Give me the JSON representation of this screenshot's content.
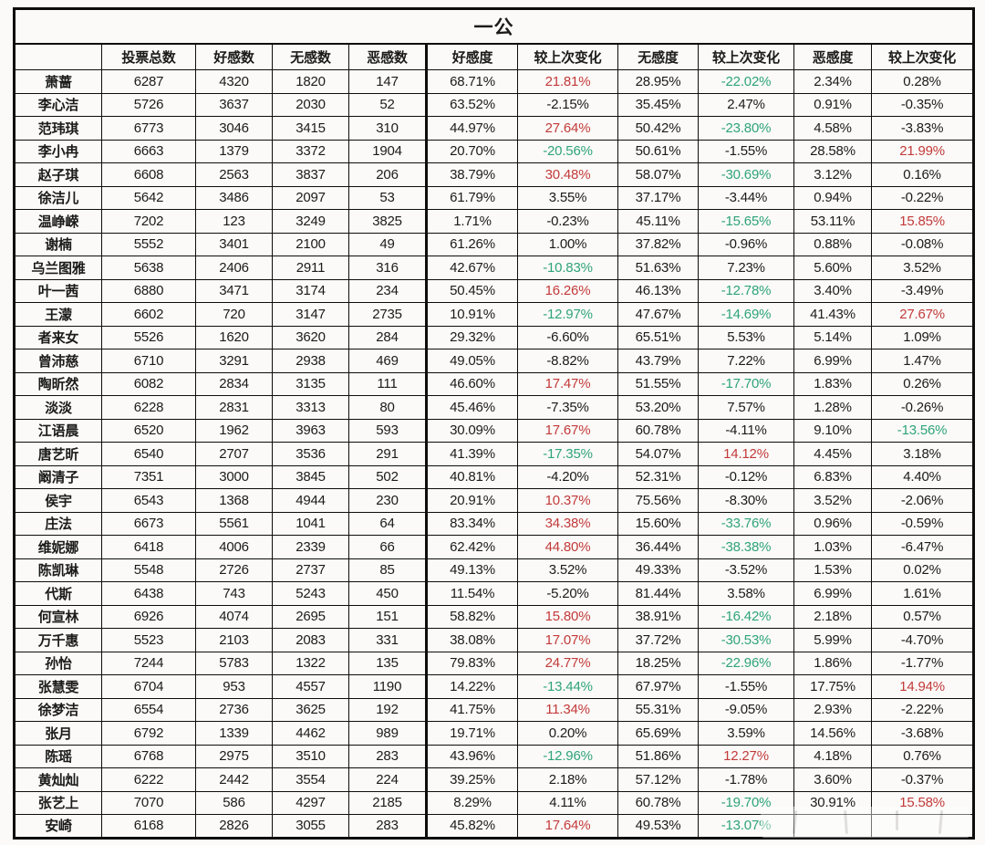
{
  "title": "一公",
  "columns": [
    "",
    "投票总数",
    "好感数",
    "无感数",
    "恶感数",
    "好感度",
    "较上次变化",
    "无感度",
    "较上次变化",
    "恶感度",
    "较上次变化"
  ],
  "colors": {
    "increase_red": "#c23a3a",
    "decrease_green": "#2fa37d",
    "text": "#1b1b1b",
    "border": "#0d0d0d",
    "background": "#fbfaf8"
  },
  "legend": {
    "r": "red (increase highlight)",
    "g": "green (decrease highlight)",
    "k": "black (normal)"
  },
  "rows": [
    {
      "name": "萧蔷",
      "values": [
        "6287",
        "4320",
        "1820",
        "147",
        "68.71%",
        "21.81%",
        "28.95%",
        "-22.02%",
        "2.34%",
        "0.28%"
      ],
      "value_colors": [
        "k",
        "k",
        "k",
        "k",
        "k",
        "r",
        "k",
        "g",
        "k",
        "k"
      ]
    },
    {
      "name": "李心洁",
      "values": [
        "5726",
        "3637",
        "2030",
        "52",
        "63.52%",
        "-2.15%",
        "35.45%",
        "2.47%",
        "0.91%",
        "-0.35%"
      ],
      "value_colors": [
        "k",
        "k",
        "k",
        "k",
        "k",
        "k",
        "k",
        "k",
        "k",
        "k"
      ]
    },
    {
      "name": "范玮琪",
      "values": [
        "6773",
        "3046",
        "3415",
        "310",
        "44.97%",
        "27.64%",
        "50.42%",
        "-23.80%",
        "4.58%",
        "-3.83%"
      ],
      "value_colors": [
        "k",
        "k",
        "k",
        "k",
        "k",
        "r",
        "k",
        "g",
        "k",
        "k"
      ]
    },
    {
      "name": "李小冉",
      "values": [
        "6663",
        "1379",
        "3372",
        "1904",
        "20.70%",
        "-20.56%",
        "50.61%",
        "-1.55%",
        "28.58%",
        "21.99%"
      ],
      "value_colors": [
        "k",
        "k",
        "k",
        "k",
        "k",
        "g",
        "k",
        "k",
        "k",
        "r"
      ]
    },
    {
      "name": "赵子琪",
      "values": [
        "6608",
        "2563",
        "3837",
        "206",
        "38.79%",
        "30.48%",
        "58.07%",
        "-30.69%",
        "3.12%",
        "0.16%"
      ],
      "value_colors": [
        "k",
        "k",
        "k",
        "k",
        "k",
        "r",
        "k",
        "g",
        "k",
        "k"
      ]
    },
    {
      "name": "徐洁儿",
      "values": [
        "5642",
        "3486",
        "2097",
        "53",
        "61.79%",
        "3.55%",
        "37.17%",
        "-3.44%",
        "0.94%",
        "-0.22%"
      ],
      "value_colors": [
        "k",
        "k",
        "k",
        "k",
        "k",
        "k",
        "k",
        "k",
        "k",
        "k"
      ]
    },
    {
      "name": "温峥嵘",
      "values": [
        "7202",
        "123",
        "3249",
        "3825",
        "1.71%",
        "-0.23%",
        "45.11%",
        "-15.65%",
        "53.11%",
        "15.85%"
      ],
      "value_colors": [
        "k",
        "k",
        "k",
        "k",
        "k",
        "k",
        "k",
        "g",
        "k",
        "r"
      ]
    },
    {
      "name": "谢楠",
      "values": [
        "5552",
        "3401",
        "2100",
        "49",
        "61.26%",
        "1.00%",
        "37.82%",
        "-0.96%",
        "0.88%",
        "-0.08%"
      ],
      "value_colors": [
        "k",
        "k",
        "k",
        "k",
        "k",
        "k",
        "k",
        "k",
        "k",
        "k"
      ]
    },
    {
      "name": "乌兰图雅",
      "values": [
        "5638",
        "2406",
        "2911",
        "316",
        "42.67%",
        "-10.83%",
        "51.63%",
        "7.23%",
        "5.60%",
        "3.52%"
      ],
      "value_colors": [
        "k",
        "k",
        "k",
        "k",
        "k",
        "g",
        "k",
        "k",
        "k",
        "k"
      ]
    },
    {
      "name": "叶一茜",
      "values": [
        "6880",
        "3471",
        "3174",
        "234",
        "50.45%",
        "16.26%",
        "46.13%",
        "-12.78%",
        "3.40%",
        "-3.49%"
      ],
      "value_colors": [
        "k",
        "k",
        "k",
        "k",
        "k",
        "r",
        "k",
        "g",
        "k",
        "k"
      ]
    },
    {
      "name": "王濛",
      "values": [
        "6602",
        "720",
        "3147",
        "2735",
        "10.91%",
        "-12.97%",
        "47.67%",
        "-14.69%",
        "41.43%",
        "27.67%"
      ],
      "value_colors": [
        "k",
        "k",
        "k",
        "k",
        "k",
        "g",
        "k",
        "g",
        "k",
        "r"
      ]
    },
    {
      "name": "者来女",
      "values": [
        "5526",
        "1620",
        "3620",
        "284",
        "29.32%",
        "-6.60%",
        "65.51%",
        "5.53%",
        "5.14%",
        "1.09%"
      ],
      "value_colors": [
        "k",
        "k",
        "k",
        "k",
        "k",
        "k",
        "k",
        "k",
        "k",
        "k"
      ]
    },
    {
      "name": "曾沛慈",
      "values": [
        "6710",
        "3291",
        "2938",
        "469",
        "49.05%",
        "-8.82%",
        "43.79%",
        "7.22%",
        "6.99%",
        "1.47%"
      ],
      "value_colors": [
        "k",
        "k",
        "k",
        "k",
        "k",
        "k",
        "k",
        "k",
        "k",
        "k"
      ]
    },
    {
      "name": "陶昕然",
      "values": [
        "6082",
        "2834",
        "3135",
        "111",
        "46.60%",
        "17.47%",
        "51.55%",
        "-17.70%",
        "1.83%",
        "0.26%"
      ],
      "value_colors": [
        "k",
        "k",
        "k",
        "k",
        "k",
        "r",
        "k",
        "g",
        "k",
        "k"
      ]
    },
    {
      "name": "淡淡",
      "values": [
        "6228",
        "2831",
        "3313",
        "80",
        "45.46%",
        "-7.35%",
        "53.20%",
        "7.57%",
        "1.28%",
        "-0.26%"
      ],
      "value_colors": [
        "k",
        "k",
        "k",
        "k",
        "k",
        "k",
        "k",
        "k",
        "k",
        "k"
      ]
    },
    {
      "name": "江语晨",
      "values": [
        "6520",
        "1962",
        "3963",
        "593",
        "30.09%",
        "17.67%",
        "60.78%",
        "-4.11%",
        "9.10%",
        "-13.56%"
      ],
      "value_colors": [
        "k",
        "k",
        "k",
        "k",
        "k",
        "r",
        "k",
        "k",
        "k",
        "g"
      ]
    },
    {
      "name": "唐艺昕",
      "values": [
        "6540",
        "2707",
        "3536",
        "291",
        "41.39%",
        "-17.35%",
        "54.07%",
        "14.12%",
        "4.45%",
        "3.18%"
      ],
      "value_colors": [
        "k",
        "k",
        "k",
        "k",
        "k",
        "g",
        "k",
        "r",
        "k",
        "k"
      ]
    },
    {
      "name": "阚清子",
      "values": [
        "7351",
        "3000",
        "3845",
        "502",
        "40.81%",
        "-4.20%",
        "52.31%",
        "-0.12%",
        "6.83%",
        "4.40%"
      ],
      "value_colors": [
        "k",
        "k",
        "k",
        "k",
        "k",
        "k",
        "k",
        "k",
        "k",
        "k"
      ]
    },
    {
      "name": "侯宇",
      "values": [
        "6543",
        "1368",
        "4944",
        "230",
        "20.91%",
        "10.37%",
        "75.56%",
        "-8.30%",
        "3.52%",
        "-2.06%"
      ],
      "value_colors": [
        "k",
        "k",
        "k",
        "k",
        "k",
        "r",
        "k",
        "k",
        "k",
        "k"
      ]
    },
    {
      "name": "庄法",
      "values": [
        "6673",
        "5561",
        "1041",
        "64",
        "83.34%",
        "34.38%",
        "15.60%",
        "-33.76%",
        "0.96%",
        "-0.59%"
      ],
      "value_colors": [
        "k",
        "k",
        "k",
        "k",
        "k",
        "r",
        "k",
        "g",
        "k",
        "k"
      ]
    },
    {
      "name": "维妮娜",
      "values": [
        "6418",
        "4006",
        "2339",
        "66",
        "62.42%",
        "44.80%",
        "36.44%",
        "-38.38%",
        "1.03%",
        "-6.47%"
      ],
      "value_colors": [
        "k",
        "k",
        "k",
        "k",
        "k",
        "r",
        "k",
        "g",
        "k",
        "k"
      ]
    },
    {
      "name": "陈凯琳",
      "values": [
        "5548",
        "2726",
        "2737",
        "85",
        "49.13%",
        "3.52%",
        "49.33%",
        "-3.52%",
        "1.53%",
        "0.02%"
      ],
      "value_colors": [
        "k",
        "k",
        "k",
        "k",
        "k",
        "k",
        "k",
        "k",
        "k",
        "k"
      ]
    },
    {
      "name": "代斯",
      "values": [
        "6438",
        "743",
        "5243",
        "450",
        "11.54%",
        "-5.20%",
        "81.44%",
        "3.58%",
        "6.99%",
        "1.61%"
      ],
      "value_colors": [
        "k",
        "k",
        "k",
        "k",
        "k",
        "k",
        "k",
        "k",
        "k",
        "k"
      ]
    },
    {
      "name": "何宣林",
      "values": [
        "6926",
        "4074",
        "2695",
        "151",
        "58.82%",
        "15.80%",
        "38.91%",
        "-16.42%",
        "2.18%",
        "0.57%"
      ],
      "value_colors": [
        "k",
        "k",
        "k",
        "k",
        "k",
        "r",
        "k",
        "g",
        "k",
        "k"
      ]
    },
    {
      "name": "万千惠",
      "values": [
        "5523",
        "2103",
        "2083",
        "331",
        "38.08%",
        "17.07%",
        "37.72%",
        "-30.53%",
        "5.99%",
        "-4.70%"
      ],
      "value_colors": [
        "k",
        "k",
        "k",
        "k",
        "k",
        "r",
        "k",
        "g",
        "k",
        "k"
      ]
    },
    {
      "name": "孙怡",
      "values": [
        "7244",
        "5783",
        "1322",
        "135",
        "79.83%",
        "24.77%",
        "18.25%",
        "-22.96%",
        "1.86%",
        "-1.77%"
      ],
      "value_colors": [
        "k",
        "k",
        "k",
        "k",
        "k",
        "r",
        "k",
        "g",
        "k",
        "k"
      ]
    },
    {
      "name": "张慧雯",
      "values": [
        "6704",
        "953",
        "4557",
        "1190",
        "14.22%",
        "-13.44%",
        "67.97%",
        "-1.55%",
        "17.75%",
        "14.94%"
      ],
      "value_colors": [
        "k",
        "k",
        "k",
        "k",
        "k",
        "g",
        "k",
        "k",
        "k",
        "r"
      ]
    },
    {
      "name": "徐梦洁",
      "values": [
        "6554",
        "2736",
        "3625",
        "192",
        "41.75%",
        "11.34%",
        "55.31%",
        "-9.05%",
        "2.93%",
        "-2.22%"
      ],
      "value_colors": [
        "k",
        "k",
        "k",
        "k",
        "k",
        "r",
        "k",
        "k",
        "k",
        "k"
      ]
    },
    {
      "name": "张月",
      "values": [
        "6792",
        "1339",
        "4462",
        "989",
        "19.71%",
        "0.20%",
        "65.69%",
        "3.59%",
        "14.56%",
        "-3.68%"
      ],
      "value_colors": [
        "k",
        "k",
        "k",
        "k",
        "k",
        "k",
        "k",
        "k",
        "k",
        "k"
      ]
    },
    {
      "name": "陈瑶",
      "values": [
        "6768",
        "2975",
        "3510",
        "283",
        "43.96%",
        "-12.96%",
        "51.86%",
        "12.27%",
        "4.18%",
        "0.76%"
      ],
      "value_colors": [
        "k",
        "k",
        "k",
        "k",
        "k",
        "g",
        "k",
        "r",
        "k",
        "k"
      ]
    },
    {
      "name": "黄灿灿",
      "values": [
        "6222",
        "2442",
        "3554",
        "224",
        "39.25%",
        "2.18%",
        "57.12%",
        "-1.78%",
        "3.60%",
        "-0.37%"
      ],
      "value_colors": [
        "k",
        "k",
        "k",
        "k",
        "k",
        "k",
        "k",
        "k",
        "k",
        "k"
      ]
    },
    {
      "name": "张艺上",
      "values": [
        "7070",
        "586",
        "4297",
        "2185",
        "8.29%",
        "4.11%",
        "60.78%",
        "-19.70%",
        "30.91%",
        "15.58%"
      ],
      "value_colors": [
        "k",
        "k",
        "k",
        "k",
        "k",
        "k",
        "k",
        "g",
        "k",
        "r"
      ]
    },
    {
      "name": "安崎",
      "values": [
        "6168",
        "2826",
        "3055",
        "283",
        "45.82%",
        "17.64%",
        "49.53%",
        "-13.07%",
        "",
        ""
      ],
      "value_colors": [
        "k",
        "k",
        "k",
        "k",
        "k",
        "r",
        "k",
        "g",
        "k",
        "k"
      ]
    }
  ]
}
